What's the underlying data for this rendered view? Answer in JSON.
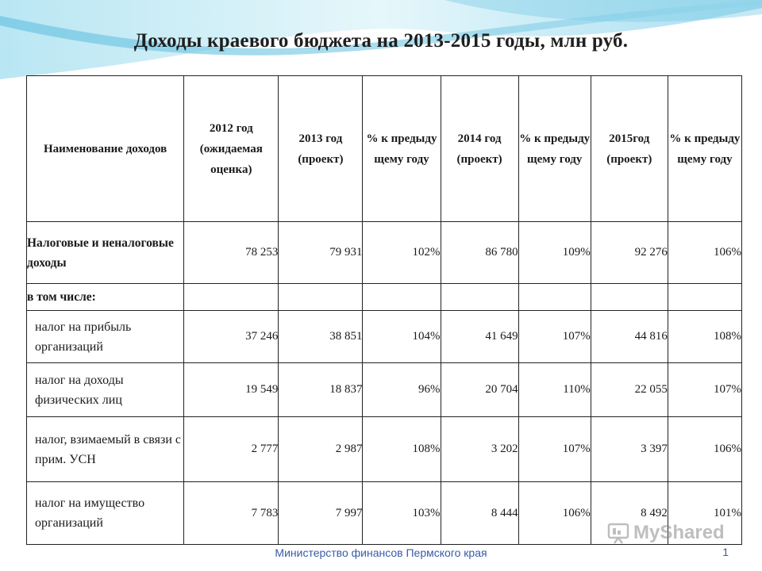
{
  "title": "Доходы краевого бюджета на 2013-2015 годы, млн руб.",
  "header": {
    "name": "Наименование доходов",
    "y2012": "2012 год (ожидаемая оценка)",
    "y2013": "2013 год (проект)",
    "pct2013": "% к предыду щему году",
    "y2014": "2014 год (проект)",
    "pct2014": "% к предыду щему году",
    "y2015": "2015год (проект)",
    "pct2015": "% к предыду щему году"
  },
  "rows": [
    {
      "label": "Налоговые и неналоговые доходы",
      "y2012": "78 253",
      "y2013": "79 931",
      "pct2013": "102%",
      "y2014": "86 780",
      "pct2014": "109%",
      "y2015": "92 276",
      "pct2015": "106%"
    },
    {
      "label": "в том числе:"
    },
    {
      "label": "налог на прибыль организаций",
      "y2012": "37 246",
      "y2013": "38 851",
      "pct2013": "104%",
      "y2014": "41 649",
      "pct2014": "107%",
      "y2015": "44 816",
      "pct2015": "108%"
    },
    {
      "label": "налог на доходы физических лиц",
      "y2012": "19 549",
      "y2013": "18 837",
      "pct2013": "96%",
      "y2014": "20 704",
      "pct2014": "110%",
      "y2015": "22 055",
      "pct2015": "107%"
    },
    {
      "label": "налог, взимаемый в связи с прим. УСН",
      "y2012": "2 777",
      "y2013": "2 987",
      "pct2013": "108%",
      "y2014": "3 202",
      "pct2014": "107%",
      "y2015": "3 397",
      "pct2015": "106%"
    },
    {
      "label": "налог на имущество организаций",
      "y2012": "7 783",
      "y2013": "7 997",
      "pct2013": "103%",
      "y2014": "8 444",
      "pct2014": "106%",
      "y2015": "8 492",
      "pct2015": "101%"
    }
  ],
  "footer": "Министерство финансов Пермского края",
  "page_number": "1",
  "watermark": "MyShared",
  "colors": {
    "wave_light": "#cfeef7",
    "wave_mid": "#8fd3ea",
    "footer_text": "#3a5aa8"
  }
}
